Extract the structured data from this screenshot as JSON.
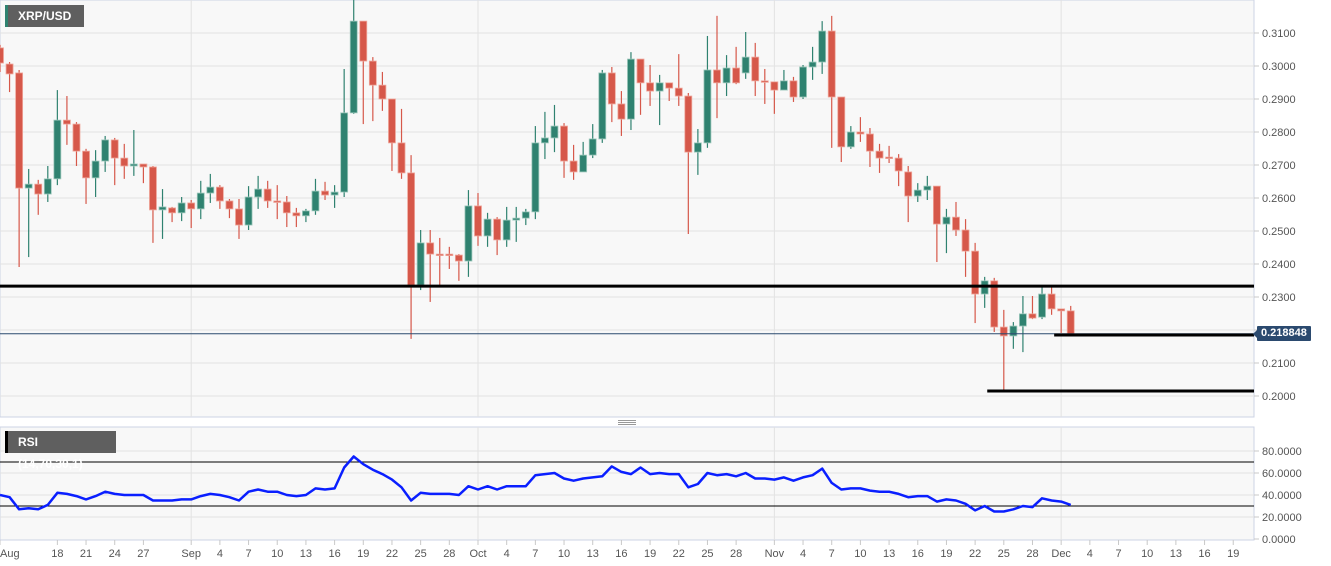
{
  "chart_data": {
    "type": "candlestick",
    "title": "XRP/USD",
    "last_price": "0.218848",
    "colors": {
      "up": "#2f8270",
      "down": "#d6584a",
      "rsi": "#0a1fff",
      "last_price_tag": "#2b4a6f",
      "annotation_lines": "#000000"
    },
    "price_axis": {
      "ylim": [
        0.1935,
        0.32
      ],
      "ticks": [
        "0.3100",
        "0.3000",
        "0.2900",
        "0.2800",
        "0.2700",
        "0.2600",
        "0.2500",
        "0.2400",
        "0.2300",
        "0.2200",
        "0.2100",
        "0.2000"
      ],
      "grid": true
    },
    "x_ticks": [
      {
        "label": "Aug",
        "date": "Aug 12"
      },
      {
        "label": "18",
        "date": "Aug 18"
      },
      {
        "label": "21",
        "date": "Aug 21"
      },
      {
        "label": "24",
        "date": "Aug 24"
      },
      {
        "label": "27",
        "date": "Aug 27"
      },
      {
        "label": "Sep",
        "date": "Sep 1"
      },
      {
        "label": "4",
        "date": "Sep 4"
      },
      {
        "label": "7",
        "date": "Sep 7"
      },
      {
        "label": "10",
        "date": "Sep 10"
      },
      {
        "label": "13",
        "date": "Sep 13"
      },
      {
        "label": "16",
        "date": "Sep 16"
      },
      {
        "label": "19",
        "date": "Sep 19"
      },
      {
        "label": "22",
        "date": "Sep 22"
      },
      {
        "label": "25",
        "date": "Sep 25"
      },
      {
        "label": "28",
        "date": "Sep 28"
      },
      {
        "label": "Oct",
        "date": "Oct 1"
      },
      {
        "label": "4",
        "date": "Oct 4"
      },
      {
        "label": "7",
        "date": "Oct 7"
      },
      {
        "label": "10",
        "date": "Oct 10"
      },
      {
        "label": "13",
        "date": "Oct 13"
      },
      {
        "label": "16",
        "date": "Oct 16"
      },
      {
        "label": "19",
        "date": "Oct 19"
      },
      {
        "label": "22",
        "date": "Oct 22"
      },
      {
        "label": "25",
        "date": "Oct 25"
      },
      {
        "label": "28",
        "date": "Oct 28"
      },
      {
        "label": "Nov",
        "date": "Nov 1"
      },
      {
        "label": "4",
        "date": "Nov 4"
      },
      {
        "label": "7",
        "date": "Nov 7"
      },
      {
        "label": "10",
        "date": "Nov 10"
      },
      {
        "label": "13",
        "date": "Nov 13"
      },
      {
        "label": "16",
        "date": "Nov 16"
      },
      {
        "label": "19",
        "date": "Nov 19"
      },
      {
        "label": "22",
        "date": "Nov 22"
      },
      {
        "label": "25",
        "date": "Nov 25"
      },
      {
        "label": "28",
        "date": "Nov 28"
      },
      {
        "label": "Dec",
        "date": "Dec 1"
      },
      {
        "label": "4",
        "date": "Dec 4"
      },
      {
        "label": "7",
        "date": "Dec 7"
      },
      {
        "label": "10",
        "date": "Dec 10"
      },
      {
        "label": "13",
        "date": "Dec 13"
      },
      {
        "label": "16",
        "date": "Dec 16"
      },
      {
        "label": "19",
        "date": "Dec 19"
      }
    ],
    "month_gridlines": [
      "Sep 1",
      "Oct 1",
      "Nov 1",
      "Dec 1"
    ],
    "horizontal_lines": [
      {
        "price": 0.2333,
        "from": "Aug 12"
      },
      {
        "price": 0.2185,
        "from": "Dec 1"
      },
      {
        "price": 0.2015,
        "from": "Nov 24"
      }
    ],
    "candle_fields": [
      "date",
      "open",
      "high",
      "low",
      "close"
    ],
    "candles": [
      [
        "Aug 12",
        0.3055,
        0.3064,
        0.2982,
        0.3009
      ],
      [
        "Aug 13",
        0.3006,
        0.3012,
        0.2921,
        0.2976
      ],
      [
        "Aug 14",
        0.2979,
        0.2988,
        0.2391,
        0.263
      ],
      [
        "Aug 15",
        0.263,
        0.2688,
        0.2421,
        0.2642
      ],
      [
        "Aug 16",
        0.2642,
        0.2655,
        0.2549,
        0.2612
      ],
      [
        "Aug 17",
        0.2612,
        0.2697,
        0.2588,
        0.2658
      ],
      [
        "Aug 18",
        0.2658,
        0.2927,
        0.2639,
        0.2836
      ],
      [
        "Aug 19",
        0.2836,
        0.2909,
        0.2761,
        0.2824
      ],
      [
        "Aug 20",
        0.2824,
        0.283,
        0.2697,
        0.2742
      ],
      [
        "Aug 21",
        0.2742,
        0.2749,
        0.2582,
        0.2661
      ],
      [
        "Aug 22",
        0.2661,
        0.2745,
        0.2603,
        0.2712
      ],
      [
        "Aug 23",
        0.2712,
        0.2788,
        0.2679,
        0.2776
      ],
      [
        "Aug 24",
        0.2776,
        0.2782,
        0.2639,
        0.2721
      ],
      [
        "Aug 25",
        0.2721,
        0.2764,
        0.2658,
        0.2697
      ],
      [
        "Aug 26",
        0.2697,
        0.2806,
        0.2667,
        0.2703
      ],
      [
        "Aug 27",
        0.2703,
        0.2703,
        0.2645,
        0.2694
      ],
      [
        "Aug 28",
        0.2694,
        0.2697,
        0.2464,
        0.2564
      ],
      [
        "Aug 29",
        0.2564,
        0.2627,
        0.2476,
        0.2573
      ],
      [
        "Aug 30",
        0.257,
        0.2573,
        0.2527,
        0.2555
      ],
      [
        "Aug 31",
        0.2555,
        0.2603,
        0.253,
        0.2585
      ],
      [
        "Sep 1",
        0.2585,
        0.2594,
        0.2509,
        0.2567
      ],
      [
        "Sep 2",
        0.2567,
        0.2652,
        0.2536,
        0.2615
      ],
      [
        "Sep 3",
        0.2615,
        0.2673,
        0.2585,
        0.2633
      ],
      [
        "Sep 4",
        0.2633,
        0.2639,
        0.2567,
        0.2591
      ],
      [
        "Sep 5",
        0.2591,
        0.2597,
        0.2539,
        0.2567
      ],
      [
        "Sep 6",
        0.2567,
        0.2597,
        0.2476,
        0.2518
      ],
      [
        "Sep 7",
        0.2518,
        0.2636,
        0.2503,
        0.2603
      ],
      [
        "Sep 8",
        0.2603,
        0.2667,
        0.2567,
        0.2627
      ],
      [
        "Sep 9",
        0.2627,
        0.2652,
        0.257,
        0.2591
      ],
      [
        "Sep 10",
        0.2591,
        0.2639,
        0.2536,
        0.2588
      ],
      [
        "Sep 11",
        0.2588,
        0.2606,
        0.2512,
        0.2555
      ],
      [
        "Sep 12",
        0.2555,
        0.257,
        0.2512,
        0.2546
      ],
      [
        "Sep 13",
        0.2546,
        0.2567,
        0.2527,
        0.2561
      ],
      [
        "Sep 14",
        0.2561,
        0.2658,
        0.2549,
        0.2621
      ],
      [
        "Sep 15",
        0.2621,
        0.2649,
        0.2594,
        0.2609
      ],
      [
        "Sep 16",
        0.2609,
        0.2639,
        0.257,
        0.2618
      ],
      [
        "Sep 17",
        0.2618,
        0.2991,
        0.2603,
        0.2858
      ],
      [
        "Sep 18",
        0.2858,
        0.32,
        0.2855,
        0.3136
      ],
      [
        "Sep 19",
        0.3136,
        0.3136,
        0.2824,
        0.3015
      ],
      [
        "Sep 20",
        0.3015,
        0.3027,
        0.2833,
        0.2942
      ],
      [
        "Sep 21",
        0.2942,
        0.2982,
        0.2864,
        0.29
      ],
      [
        "Sep 22",
        0.29,
        0.29,
        0.2682,
        0.2767
      ],
      [
        "Sep 23",
        0.2767,
        0.287,
        0.2658,
        0.2676
      ],
      [
        "Sep 24",
        0.2676,
        0.273,
        0.2173,
        0.2336
      ],
      [
        "Sep 25",
        0.2336,
        0.2503,
        0.2321,
        0.2464
      ],
      [
        "Sep 26",
        0.2464,
        0.2503,
        0.2285,
        0.243
      ],
      [
        "Sep 27",
        0.243,
        0.2479,
        0.2336,
        0.2427
      ],
      [
        "Sep 28",
        0.243,
        0.2452,
        0.2385,
        0.2427
      ],
      [
        "Sep 29",
        0.2427,
        0.243,
        0.2349,
        0.2409
      ],
      [
        "Sep 30",
        0.2409,
        0.2624,
        0.2361,
        0.2576
      ],
      [
        "Oct 1",
        0.2576,
        0.2615,
        0.2455,
        0.2485
      ],
      [
        "Oct 2",
        0.2485,
        0.2555,
        0.2452,
        0.2536
      ],
      [
        "Oct 3",
        0.2536,
        0.2542,
        0.2427,
        0.2473
      ],
      [
        "Oct 4",
        0.2473,
        0.2573,
        0.2452,
        0.2533
      ],
      [
        "Oct 5",
        0.2533,
        0.2573,
        0.2467,
        0.2539
      ],
      [
        "Oct 6",
        0.2539,
        0.2567,
        0.2518,
        0.2558
      ],
      [
        "Oct 7",
        0.2558,
        0.2818,
        0.2536,
        0.2767
      ],
      [
        "Oct 8",
        0.2767,
        0.2861,
        0.2718,
        0.2782
      ],
      [
        "Oct 9",
        0.2782,
        0.2882,
        0.2739,
        0.2818
      ],
      [
        "Oct 10",
        0.2818,
        0.2827,
        0.2661,
        0.2712
      ],
      [
        "Oct 11",
        0.2712,
        0.2761,
        0.2655,
        0.2679
      ],
      [
        "Oct 12",
        0.2679,
        0.277,
        0.2679,
        0.273
      ],
      [
        "Oct 13",
        0.273,
        0.2824,
        0.2721,
        0.2779
      ],
      [
        "Oct 14",
        0.2779,
        0.2988,
        0.2767,
        0.2979
      ],
      [
        "Oct 15",
        0.2979,
        0.2997,
        0.283,
        0.2885
      ],
      [
        "Oct 16",
        0.2885,
        0.2924,
        0.2788,
        0.2839
      ],
      [
        "Oct 17",
        0.2839,
        0.3042,
        0.2806,
        0.3021
      ],
      [
        "Oct 18",
        0.3021,
        0.3021,
        0.2852,
        0.2949
      ],
      [
        "Oct 19",
        0.2949,
        0.3003,
        0.2879,
        0.2924
      ],
      [
        "Oct 20",
        0.2924,
        0.2973,
        0.2821,
        0.2949
      ],
      [
        "Oct 21",
        0.2949,
        0.2949,
        0.2894,
        0.2933
      ],
      [
        "Oct 22",
        0.2933,
        0.3036,
        0.2879,
        0.2909
      ],
      [
        "Oct 23",
        0.2909,
        0.2918,
        0.2491,
        0.2739
      ],
      [
        "Oct 24",
        0.2739,
        0.2809,
        0.267,
        0.2767
      ],
      [
        "Oct 25",
        0.2767,
        0.3091,
        0.2752,
        0.2988
      ],
      [
        "Oct 26",
        0.2988,
        0.3152,
        0.2842,
        0.2949
      ],
      [
        "Oct 27",
        0.2949,
        0.3033,
        0.2909,
        0.2994
      ],
      [
        "Oct 28",
        0.2994,
        0.3058,
        0.2945,
        0.2949
      ],
      [
        "Oct 29",
        0.2979,
        0.3103,
        0.2961,
        0.3027
      ],
      [
        "Oct 30",
        0.3027,
        0.307,
        0.2909,
        0.2955
      ],
      [
        "Oct 31",
        0.2955,
        0.2991,
        0.2885,
        0.2952
      ],
      [
        "Nov 1",
        0.2952,
        0.2952,
        0.2855,
        0.2927
      ],
      [
        "Nov 2",
        0.2927,
        0.2988,
        0.2927,
        0.2955
      ],
      [
        "Nov 3",
        0.2955,
        0.2967,
        0.2891,
        0.2906
      ],
      [
        "Nov 4",
        0.2906,
        0.3003,
        0.29,
        0.2997
      ],
      [
        "Nov 5",
        0.2997,
        0.3058,
        0.2958,
        0.3012
      ],
      [
        "Nov 6",
        0.3012,
        0.3136,
        0.2976,
        0.3106
      ],
      [
        "Nov 7",
        0.3106,
        0.3152,
        0.2752,
        0.2906
      ],
      [
        "Nov 8",
        0.2906,
        0.2906,
        0.2709,
        0.2755
      ],
      [
        "Nov 9",
        0.2755,
        0.2818,
        0.2749,
        0.28
      ],
      [
        "Nov 10",
        0.28,
        0.2845,
        0.277,
        0.2794
      ],
      [
        "Nov 11",
        0.2794,
        0.2812,
        0.2694,
        0.2742
      ],
      [
        "Nov 12",
        0.2742,
        0.2764,
        0.2676,
        0.2721
      ],
      [
        "Nov 13",
        0.2724,
        0.2758,
        0.2706,
        0.2721
      ],
      [
        "Nov 14",
        0.2721,
        0.2733,
        0.2636,
        0.2682
      ],
      [
        "Nov 15",
        0.2679,
        0.2697,
        0.2527,
        0.2606
      ],
      [
        "Nov 16",
        0.2606,
        0.2645,
        0.2588,
        0.2624
      ],
      [
        "Nov 17",
        0.2624,
        0.2667,
        0.2594,
        0.2636
      ],
      [
        "Nov 18",
        0.2636,
        0.2636,
        0.2406,
        0.2521
      ],
      [
        "Nov 19",
        0.2521,
        0.2567,
        0.2433,
        0.2542
      ],
      [
        "Nov 20",
        0.2542,
        0.2588,
        0.2485,
        0.2503
      ],
      [
        "Nov 21",
        0.2503,
        0.2536,
        0.2361,
        0.2439
      ],
      [
        "Nov 22",
        0.2439,
        0.2464,
        0.2221,
        0.2309
      ],
      [
        "Nov 23",
        0.2309,
        0.2361,
        0.2267,
        0.2349
      ],
      [
        "Nov 24",
        0.2349,
        0.2358,
        0.2194,
        0.2209
      ],
      [
        "Nov 25",
        0.2209,
        0.2261,
        0.2018,
        0.2182
      ],
      [
        "Nov 26",
        0.2182,
        0.2224,
        0.2143,
        0.2212
      ],
      [
        "Nov 27",
        0.2212,
        0.2303,
        0.2133,
        0.2249
      ],
      [
        "Nov 28",
        0.2249,
        0.2303,
        0.2233,
        0.2236
      ],
      [
        "Nov 29",
        0.2239,
        0.233,
        0.2233,
        0.2309
      ],
      [
        "Nov 30",
        0.2309,
        0.233,
        0.2246,
        0.2264
      ],
      [
        "Dec 1",
        0.2264,
        0.2264,
        0.2191,
        0.2258
      ],
      [
        "Dec 2",
        0.2258,
        0.2273,
        0.2191,
        0.2188
      ]
    ],
    "rsi": {
      "label": "RSI (14,70,30,1)",
      "ylim": [
        0,
        100
      ],
      "ticks": [
        "80.0000",
        "60.0000",
        "40.0000",
        "20.0000",
        "0.0000"
      ],
      "levels": [
        70,
        30
      ],
      "values": [
        40,
        38,
        27,
        28,
        27,
        31,
        42,
        41,
        39,
        36,
        39,
        43,
        41,
        40,
        40,
        40,
        35,
        35,
        35,
        36,
        36,
        39,
        41,
        40,
        38,
        35,
        43,
        45,
        43,
        43,
        40,
        39,
        40,
        46,
        45,
        46,
        65,
        75,
        68,
        63,
        59,
        54,
        47,
        35,
        42,
        41,
        41,
        41,
        40,
        48,
        45,
        48,
        45,
        48,
        48,
        48,
        58,
        59,
        60,
        55,
        53,
        55,
        56,
        57,
        66,
        61,
        59,
        65,
        59,
        60,
        59,
        59,
        47,
        50,
        60,
        58,
        59,
        57,
        60,
        55,
        55,
        54,
        56,
        53,
        56,
        58,
        64,
        51,
        45,
        46,
        46,
        44,
        43,
        43,
        41,
        38,
        39,
        39,
        34,
        36,
        35,
        32,
        26,
        30,
        25,
        25,
        27,
        30,
        29,
        37,
        35,
        34,
        31
      ]
    }
  }
}
